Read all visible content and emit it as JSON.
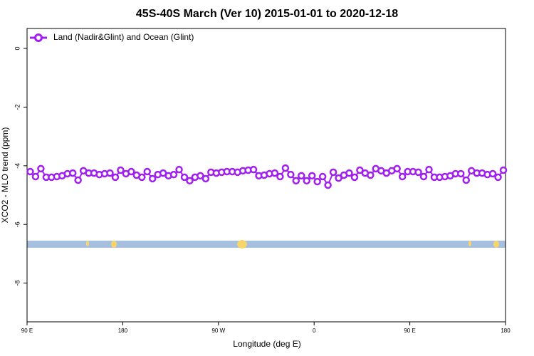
{
  "chart_data": {
    "type": "line",
    "title": "45S-40S March (Ver 10)   2015-01-01 to 2020-12-18",
    "xlabel": "Longitude (deg E)",
    "ylabel": "XCO2 - MLO trend (ppm)",
    "xlim": [
      90,
      540
    ],
    "xticks": [
      {
        "value": 90,
        "label": "90 E"
      },
      180,
      {
        "value": 270,
        "label": "90 W"
      },
      {
        "value": 360,
        "label": "0"
      },
      {
        "value": 450,
        "label": "90 E"
      },
      {
        "value": 540,
        "label": "180"
      }
    ],
    "ylim": [
      -9.32,
      0.68
    ],
    "yticks": [
      0,
      -2,
      -4,
      -6,
      -8
    ],
    "legend": "top-left",
    "x": [
      93,
      98,
      103,
      108,
      113,
      118,
      123,
      128,
      133,
      138,
      143,
      148,
      153,
      158,
      163,
      168,
      173,
      178,
      183,
      188,
      193,
      198,
      203,
      208,
      213,
      218,
      223,
      228,
      233,
      238,
      243,
      248,
      253,
      258,
      263,
      268,
      273,
      278,
      283,
      288,
      293,
      298,
      303,
      308,
      313,
      318,
      323,
      328,
      333,
      338,
      343,
      348,
      353,
      358,
      363,
      368,
      373,
      378,
      383,
      388,
      393,
      398,
      403,
      408,
      413,
      418,
      423,
      428,
      433,
      438,
      443,
      448,
      453,
      458,
      463,
      468,
      473,
      478,
      483,
      488,
      493,
      498,
      503,
      508,
      513,
      518,
      523,
      528,
      533,
      538
    ],
    "series": [
      {
        "name": "Land (Nadir&Glint) and Ocean (Glint)",
        "color": "#a020f0",
        "values": [
          -4.2,
          -4.37,
          -4.1,
          -4.39,
          -4.39,
          -4.37,
          -4.34,
          -4.27,
          -4.25,
          -4.49,
          -4.17,
          -4.25,
          -4.25,
          -4.3,
          -4.27,
          -4.25,
          -4.39,
          -4.15,
          -4.27,
          -4.2,
          -4.32,
          -4.39,
          -4.2,
          -4.44,
          -4.3,
          -4.25,
          -4.34,
          -4.3,
          -4.13,
          -4.39,
          -4.51,
          -4.39,
          -4.34,
          -4.44,
          -4.22,
          -4.25,
          -4.22,
          -4.2,
          -4.2,
          -4.22,
          -4.17,
          -4.15,
          -4.13,
          -4.34,
          -4.32,
          -4.27,
          -4.25,
          -4.37,
          -4.08,
          -4.3,
          -4.51,
          -4.34,
          -4.51,
          -4.34,
          -4.54,
          -4.37,
          -4.66,
          -4.22,
          -4.42,
          -4.32,
          -4.25,
          -4.39,
          -4.15,
          -4.25,
          -4.32,
          -4.1,
          -4.17,
          -4.25,
          -4.17,
          -4.1,
          -4.37,
          -4.2,
          -4.2,
          -4.22,
          -4.37,
          -4.13,
          -4.39,
          -4.39,
          -4.37,
          -4.34,
          -4.27,
          -4.27,
          -4.49,
          -4.17,
          -4.25,
          -4.25,
          -4.3,
          -4.27,
          -4.39,
          -4.15
        ]
      }
    ]
  }
}
